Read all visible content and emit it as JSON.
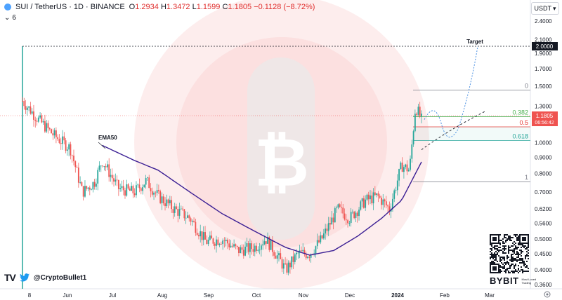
{
  "header": {
    "symbol": "SUI / TetherUS · 1D · BINANCE",
    "open_label": "O",
    "open": "1.2934",
    "high_label": "H",
    "high": "1.3472",
    "low_label": "L",
    "low": "1.1599",
    "close_label": "C",
    "close": "1.1805",
    "change": "−0.1128 (−8.72%)",
    "indicator_count": "6"
  },
  "currency": "USDT",
  "price_tag": {
    "price": "1.1805",
    "countdown": "06:56:42"
  },
  "target_label": "Target",
  "target_price": "2.0000",
  "ema_label": "EMA50",
  "fib": [
    {
      "label": "0",
      "price": 1.46,
      "color": "#787b86"
    },
    {
      "label": "0.382",
      "price": 1.205,
      "color": "#4caf50"
    },
    {
      "label": "0.5",
      "price": 1.12,
      "color": "#e53935"
    },
    {
      "label": "0.618",
      "price": 1.015,
      "color": "#26a69a"
    },
    {
      "label": "1",
      "price": 0.755,
      "color": "#787b86"
    }
  ],
  "footer": {
    "handle": "@CryptoBullet1",
    "brand": "BYBIT",
    "brand_slogan": "Most Loved Trading"
  },
  "colors": {
    "up": "#26a69a",
    "down": "#ef5350",
    "ema": "#3b1f94",
    "watermark": "#fde3e3",
    "projection": "#4a90e2"
  },
  "chart_data": {
    "type": "candlestick",
    "scale": "log",
    "ylim": [
      0.36,
      2.6
    ],
    "y_ticks": [
      2.4,
      2.1,
      1.9,
      1.7,
      1.5,
      1.3,
      1.2,
      1.0,
      0.9,
      0.8,
      0.7,
      0.62,
      0.56,
      0.5,
      0.45,
      0.4,
      0.36
    ],
    "y_tick_labels": [
      "2.4000",
      "2.1000",
      "1.9000",
      "1.7000",
      "1.5000",
      "1.3000",
      "",
      "1.0000",
      "0.9000",
      "0.8000",
      "0.7000",
      "0.6200",
      "0.5600",
      "0.5000",
      "0.4500",
      "0.4000",
      "0.3600"
    ],
    "x_tick_labels": [
      "8",
      "Jun",
      "Jul",
      "Aug",
      "Sep",
      "Oct",
      "Nov",
      "Dec",
      "2024",
      "Feb",
      "Mar"
    ],
    "close_anchors": [
      {
        "t": 0,
        "v": 1.35
      },
      {
        "t": 0.04,
        "v": 1.18
      },
      {
        "t": 0.08,
        "v": 1.05
      },
      {
        "t": 0.12,
        "v": 0.96
      },
      {
        "t": 0.15,
        "v": 0.7
      },
      {
        "t": 0.18,
        "v": 0.75
      },
      {
        "t": 0.2,
        "v": 0.88
      },
      {
        "t": 0.24,
        "v": 0.72
      },
      {
        "t": 0.28,
        "v": 0.7
      },
      {
        "t": 0.31,
        "v": 0.76
      },
      {
        "t": 0.34,
        "v": 0.68
      },
      {
        "t": 0.38,
        "v": 0.62
      },
      {
        "t": 0.42,
        "v": 0.58
      },
      {
        "t": 0.46,
        "v": 0.49
      },
      {
        "t": 0.5,
        "v": 0.5
      },
      {
        "t": 0.54,
        "v": 0.46
      },
      {
        "t": 0.58,
        "v": 0.47
      },
      {
        "t": 0.61,
        "v": 0.5
      },
      {
        "t": 0.63,
        "v": 0.46
      },
      {
        "t": 0.66,
        "v": 0.4
      },
      {
        "t": 0.69,
        "v": 0.45
      },
      {
        "t": 0.72,
        "v": 0.45
      },
      {
        "t": 0.75,
        "v": 0.5
      },
      {
        "t": 0.79,
        "v": 0.62
      },
      {
        "t": 0.82,
        "v": 0.58
      },
      {
        "t": 0.86,
        "v": 0.66
      },
      {
        "t": 0.89,
        "v": 0.68
      },
      {
        "t": 0.92,
        "v": 0.62
      },
      {
        "t": 0.95,
        "v": 0.85
      },
      {
        "t": 0.97,
        "v": 0.82
      },
      {
        "t": 0.985,
        "v": 1.3
      },
      {
        "t": 1.0,
        "v": 1.18
      }
    ],
    "ema50": [
      {
        "t": 0.2,
        "v": 0.98
      },
      {
        "t": 0.28,
        "v": 0.88
      },
      {
        "t": 0.34,
        "v": 0.82
      },
      {
        "t": 0.42,
        "v": 0.7
      },
      {
        "t": 0.5,
        "v": 0.6
      },
      {
        "t": 0.58,
        "v": 0.53
      },
      {
        "t": 0.66,
        "v": 0.47
      },
      {
        "t": 0.72,
        "v": 0.445
      },
      {
        "t": 0.78,
        "v": 0.46
      },
      {
        "t": 0.84,
        "v": 0.51
      },
      {
        "t": 0.9,
        "v": 0.58
      },
      {
        "t": 0.95,
        "v": 0.66
      },
      {
        "t": 1.0,
        "v": 0.87
      }
    ],
    "projection_path": "zigzag from last close toward 2.0000 Target",
    "x_axis_dates": "May 2023 – Mar 2024"
  }
}
